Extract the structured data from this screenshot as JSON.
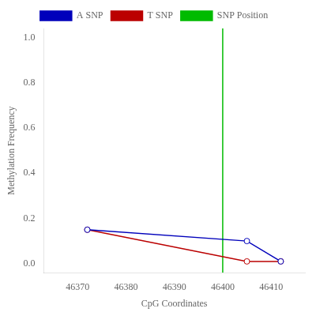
{
  "chart_data": {
    "type": "line",
    "xlabel": "CpG Coordinates",
    "ylabel": "Methylation Frequency",
    "x": [
      46372,
      46405,
      46412
    ],
    "series": [
      {
        "name": "A SNP",
        "color": "#0000BB",
        "marker": "circle",
        "values": [
          0.15,
          0.1,
          0.01
        ]
      },
      {
        "name": "T SNP",
        "color": "#BB0000",
        "marker": "circle",
        "values": [
          0.15,
          0.01,
          0.01
        ]
      }
    ],
    "vline": {
      "name": "SNP Position",
      "color": "#00BB00",
      "x": 46400
    },
    "xlim": [
      46363,
      46417
    ],
    "xticks": [
      46370,
      46380,
      46390,
      46400,
      46410
    ],
    "ylim": [
      -0.04,
      1.04
    ],
    "yticks": [
      {
        "value": 0.0,
        "label": "0.0"
      },
      {
        "value": 0.2,
        "label": "0.2"
      },
      {
        "value": 0.4,
        "label": "0.4"
      },
      {
        "value": 0.6,
        "label": "0.6"
      },
      {
        "value": 0.8,
        "label": "0.8"
      },
      {
        "value": 1.0,
        "label": "1.0"
      }
    ],
    "grid": false,
    "legend": "top"
  }
}
